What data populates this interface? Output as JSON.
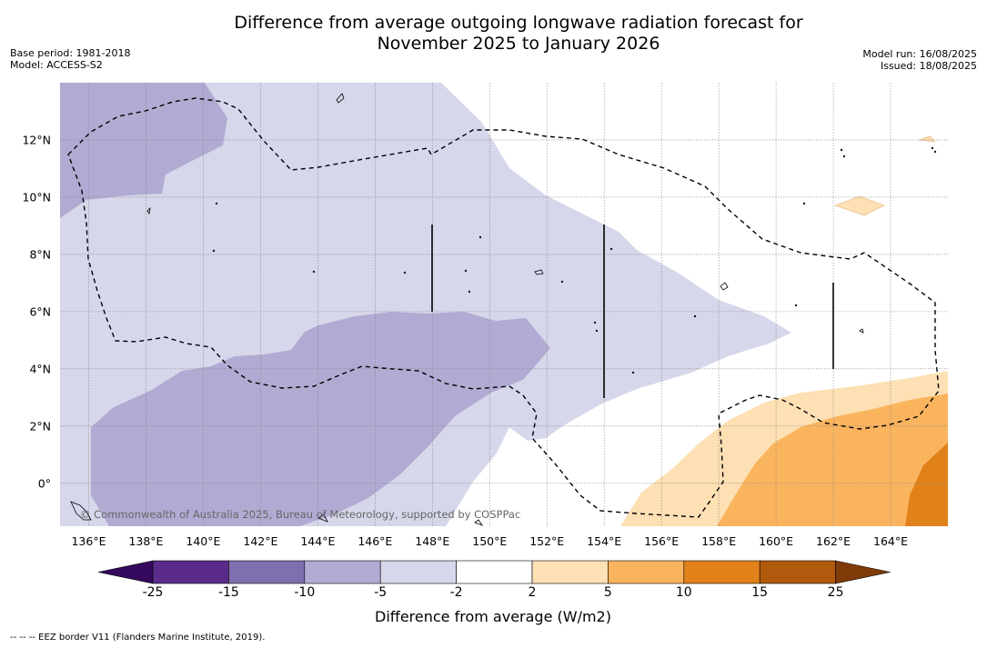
{
  "title_line1": "Difference from average outgoing longwave radiation forecast for",
  "title_line2": "November 2025 to January 2026",
  "base_period": "Base period: 1981-2018",
  "model": "Model: ACCESS-S2",
  "model_run": "Model run: 16/08/2025",
  "issued": "Issued: 18/08/2025",
  "copyright": "© Commonwealth of Australia 2025, Bureau of Meteorology, supported by COSPPac",
  "footnote": "--  --  -- EEZ border V11 (Flanders Marine Institute, 2019).",
  "colorbar": {
    "title": "Difference from average (W/m2)",
    "labels": [
      "-25",
      "-15",
      "-10",
      "-5",
      "-2",
      "2",
      "5",
      "10",
      "15",
      "25"
    ],
    "colors": [
      "#5a2b8a",
      "#7f6fae",
      "#b1abd3",
      "#d6d7ea",
      "#ffffff",
      "#fde0b3",
      "#fbb45e",
      "#e1811a",
      "#b15a0e"
    ],
    "under_color": "#35095e",
    "over_color": "#7f3b08"
  },
  "map": {
    "lon_ticks": [
      "136°E",
      "138°E",
      "140°E",
      "142°E",
      "144°E",
      "146°E",
      "148°E",
      "150°E",
      "152°E",
      "154°E",
      "156°E",
      "158°E",
      "160°E",
      "162°E",
      "164°E"
    ],
    "lat_ticks": [
      "12°N",
      "10°N",
      "8°N",
      "6°N",
      "4°N",
      "2°N",
      "0°"
    ],
    "lon_values": [
      136,
      138,
      140,
      142,
      144,
      146,
      148,
      150,
      152,
      154,
      156,
      158,
      160,
      162,
      164
    ],
    "lat_values": [
      12,
      10,
      8,
      6,
      4,
      2,
      0
    ],
    "lon_range": [
      135,
      166
    ],
    "lat_range": [
      -1.5,
      14
    ]
  }
}
